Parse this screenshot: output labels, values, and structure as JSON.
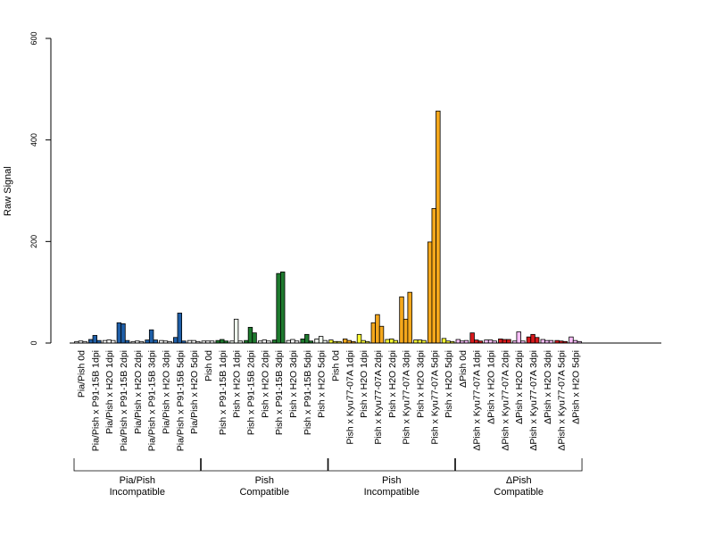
{
  "chart_data": {
    "type": "bar",
    "ylabel": "Raw Signal",
    "ylim": [
      0,
      600
    ],
    "yticks": [
      "0",
      "200",
      "400",
      "600"
    ],
    "grid": false,
    "legend": "none",
    "replicates_per_category": 3,
    "categories": [
      "Pia/Pish 0d",
      "Pia/Pish x P91-15B 1dpi",
      "Pia/Pish x H2O 1dpi",
      "Pia/Pish x P91-15B 2dpi",
      "Pia/Pish x H2O 2dpi",
      "Pia/Pish x P91-15B 3dpi",
      "Pia/Pish x H2O 3dpi",
      "Pia/Pish x P91-15B 5dpi",
      "Pia/Pish x H2O 5dpi",
      "Pish 0d",
      "Pish x P91-15B 1dpi",
      "Pish x H2O 1dpi",
      "Pish x P91-15B 2dpi",
      "Pish x H2O 2dpi",
      "Pish x P91-15B 3dpi",
      "Pish x H2O 3dpi",
      "Pish x P91-15B 5dpi",
      "Pish x H2O 5dpi",
      "Pish 0d",
      "Pish x Kyu77-07A 1dpi",
      "Pish x H2O 1dpi",
      "Pish x Kyu77-07A 2dpi",
      "Pish x H2O 2dpi",
      "Pish x Kyu77-07A 3dpi",
      "Pish x H2O 3dpi",
      "Pish x Kyu77-07A 5dpi",
      "Pish x H2O 5dpi",
      "ΔPish 0d",
      "ΔPish x Kyu77-07A 1dpi",
      "ΔPish x H2O 1dpi",
      "ΔPish x Kyu77-07A 2dpi",
      "ΔPish x H2O 2dpi",
      "ΔPish x Kyu77-07A 3dpi",
      "ΔPish x H2O 3dpi",
      "ΔPish x Kyu77-07A 5dpi",
      "ΔPish x H2O 5dpi"
    ],
    "groups": [
      {
        "label_line1": "Pia/Pish",
        "label_line2": "Incompatible",
        "start": 0,
        "count": 9
      },
      {
        "label_line1": "Pish",
        "label_line2": "Compatible",
        "start": 9,
        "count": 9
      },
      {
        "label_line1": "Pish",
        "label_line2": "Incompatible",
        "start": 18,
        "count": 9
      },
      {
        "label_line1": "ΔPish",
        "label_line2": "Compatible",
        "start": 27,
        "count": 9
      }
    ],
    "bar_colors": [
      "#ffffff",
      "#1f5fa8",
      "#ffffff",
      "#1f5fa8",
      "#ffffff",
      "#1f5fa8",
      "#ffffff",
      "#1f5fa8",
      "#ffffff",
      "#ffffff",
      "#1e7a2e",
      "#f0f7ef",
      "#1e7a2e",
      "#ffffff",
      "#1e7a2e",
      "#ffffff",
      "#1e7a2e",
      "#f0f7ef",
      "#ffff33",
      "#f5a81c",
      "#ffff33",
      "#f5a81c",
      "#ffff33",
      "#f5a81c",
      "#ffff33",
      "#f5a81c",
      "#ffff33",
      "#ffc0ff",
      "#d7191c",
      "#ffc0ff",
      "#d7191c",
      "#ffc0ff",
      "#d7191c",
      "#ffc0ff",
      "#d7191c",
      "#ffc0ff"
    ],
    "values": [
      [
        3,
        4,
        3
      ],
      [
        7,
        15,
        5
      ],
      [
        5,
        6,
        5
      ],
      [
        40,
        38,
        5
      ],
      [
        3,
        4,
        3
      ],
      [
        6,
        26,
        6
      ],
      [
        5,
        4,
        3
      ],
      [
        11,
        59,
        4
      ],
      [
        5,
        5,
        3
      ],
      [
        4,
        4,
        4
      ],
      [
        5,
        7,
        4
      ],
      [
        4,
        47,
        4
      ],
      [
        5,
        31,
        20
      ],
      [
        4,
        6,
        4
      ],
      [
        6,
        137,
        140
      ],
      [
        5,
        7,
        4
      ],
      [
        8,
        17,
        4
      ],
      [
        8,
        13,
        5
      ],
      [
        6,
        3,
        3
      ],
      [
        8,
        5,
        3
      ],
      [
        17,
        5,
        3
      ],
      [
        40,
        56,
        33
      ],
      [
        7,
        8,
        5
      ],
      [
        91,
        47,
        100
      ],
      [
        6,
        6,
        5
      ],
      [
        199,
        265,
        457
      ],
      [
        9,
        4,
        3
      ],
      [
        7,
        4,
        5
      ],
      [
        20,
        6,
        4
      ],
      [
        6,
        6,
        4
      ],
      [
        8,
        7,
        7
      ],
      [
        4,
        22,
        4
      ],
      [
        12,
        17,
        11
      ],
      [
        7,
        5,
        5
      ],
      [
        5,
        4,
        3
      ],
      [
        12,
        5,
        3
      ]
    ]
  }
}
